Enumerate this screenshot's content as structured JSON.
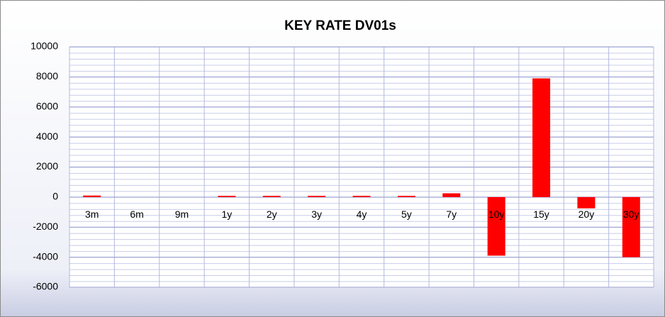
{
  "chart_data": {
    "type": "bar",
    "title": "KEY RATE DV01s",
    "categories": [
      "3m",
      "6m",
      "9m",
      "1y",
      "2y",
      "3y",
      "4y",
      "5y",
      "7y",
      "10y",
      "15y",
      "20y",
      "30y"
    ],
    "values": [
      100,
      0,
      0,
      80,
      80,
      80,
      80,
      80,
      250,
      -3900,
      7900,
      -750,
      -4000
    ],
    "color": "#ff0000",
    "ylim": [
      -6000,
      10000
    ],
    "yticks": [
      -6000,
      -4000,
      -2000,
      0,
      2000,
      4000,
      6000,
      8000,
      10000
    ],
    "grid": true
  }
}
